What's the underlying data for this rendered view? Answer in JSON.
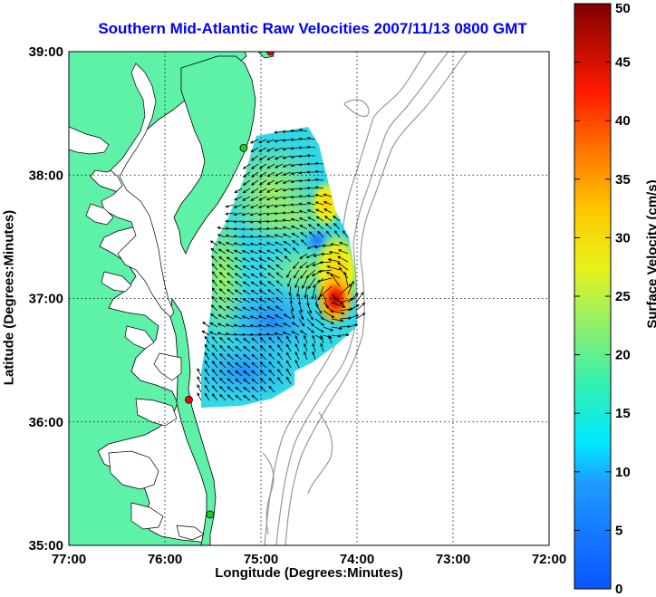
{
  "map": {
    "title": "Southern Mid-Atlantic Raw Velocities 2007/11/13 0800 GMT",
    "xlabel": "Longitude (Degrees:Minutes)",
    "ylabel": "Latitude (Degrees:Minutes)",
    "x_ticks": [
      "77:00",
      "76:00",
      "75:00",
      "74:00",
      "73:00",
      "72:00"
    ],
    "y_ticks": [
      "39:00",
      "38:00",
      "37:00",
      "36:00",
      "35:00"
    ],
    "lon_range": [
      -77,
      -72
    ],
    "lat_range": [
      35,
      39
    ],
    "grid": "dotted",
    "land_color": "#5ef1a8",
    "ocean_color": "#ffffff",
    "coastline_color": "#000000",
    "bathymetry_color": "#999999",
    "stations": [
      {
        "color": "#ff0000",
        "lon": -74.9,
        "lat": 39.0
      },
      {
        "color": "#22cc22",
        "lon": -75.18,
        "lat": 38.22
      },
      {
        "color": "#ff0000",
        "lon": -75.75,
        "lat": 36.18
      },
      {
        "color": "#22cc22",
        "lon": -75.53,
        "lat": 35.25
      }
    ]
  },
  "colorbar": {
    "label": "Surface Velocity (cm/s)",
    "ticks": [
      "50",
      "45",
      "40",
      "35",
      "30",
      "25",
      "20",
      "15",
      "10",
      "5",
      "0"
    ],
    "min": 0,
    "max": 50
  }
}
